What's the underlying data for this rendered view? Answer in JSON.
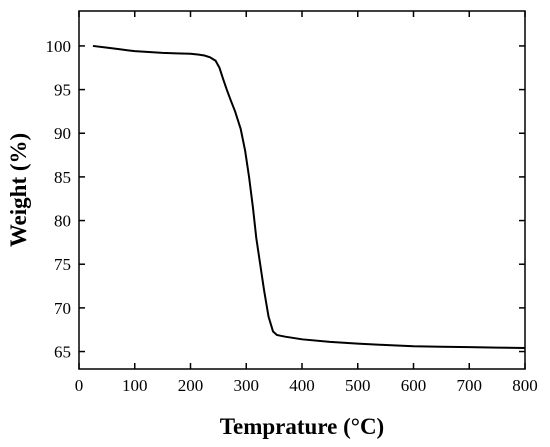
{
  "chart_data": {
    "type": "line",
    "xlabel": "Temprature (°C)",
    "ylabel": "Weight (%)",
    "xlim": [
      0,
      800
    ],
    "ylim": [
      63,
      104
    ],
    "grid": false,
    "legend": "none",
    "x_ticks": [
      0,
      100,
      200,
      300,
      400,
      500,
      600,
      700,
      800
    ],
    "y_ticks": [
      65,
      70,
      75,
      80,
      85,
      90,
      95,
      100
    ],
    "line_color": "#000000",
    "series": [
      {
        "x": [
          25,
          50,
          75,
          100,
          125,
          150,
          175,
          200,
          215,
          225,
          235,
          245,
          252,
          258,
          265,
          272,
          280,
          290,
          298,
          305,
          312,
          318,
          325,
          332,
          340,
          348,
          355,
          362,
          370,
          380,
          400,
          450,
          500,
          550,
          600,
          650,
          700,
          750,
          800
        ],
        "y": [
          100.0,
          99.8,
          99.6,
          99.4,
          99.3,
          99.2,
          99.15,
          99.1,
          99.0,
          98.9,
          98.7,
          98.3,
          97.5,
          96.3,
          95.0,
          93.8,
          92.5,
          90.5,
          88.0,
          85.0,
          81.5,
          78.0,
          75.0,
          72.0,
          69.0,
          67.3,
          66.9,
          66.8,
          66.7,
          66.6,
          66.4,
          66.1,
          65.9,
          65.75,
          65.6,
          65.55,
          65.5,
          65.45,
          65.4
        ]
      }
    ]
  }
}
